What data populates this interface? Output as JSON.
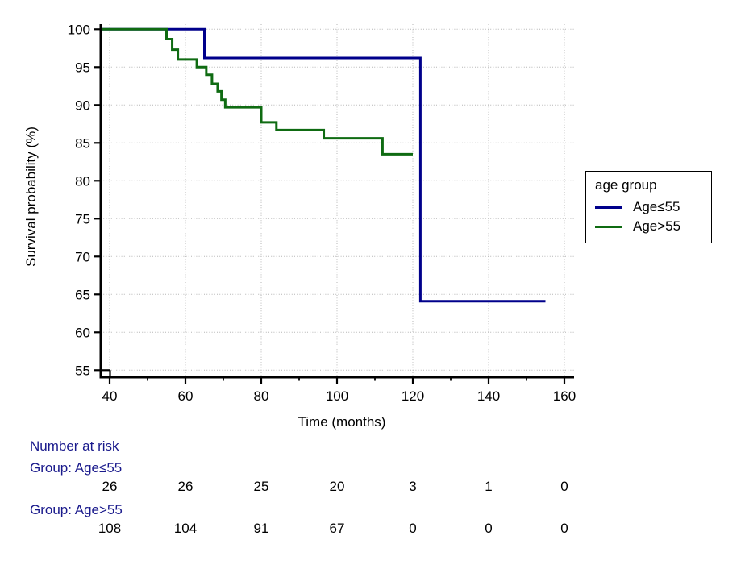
{
  "colors": {
    "curve_age_le_55": "#00008b",
    "curve_age_gt_55": "#0f6b12",
    "risk_text": "#1a1a8c",
    "grid": "#b5b5b5",
    "axis": "#000000"
  },
  "chart_data": {
    "type": "line",
    "subtype": "kaplan-meier-step-curve",
    "title": "",
    "xlabel": "Time (months)",
    "ylabel": "Survival probability (%)",
    "xlim": [
      40,
      160
    ],
    "ylim": [
      55,
      100
    ],
    "x_ticks": [
      40,
      60,
      80,
      100,
      120,
      140,
      160
    ],
    "x_minor_ticks": [
      50,
      70,
      90,
      110,
      130,
      150
    ],
    "y_ticks": [
      55,
      60,
      65,
      70,
      75,
      80,
      85,
      90,
      95,
      100
    ],
    "grid": "dotted",
    "legend": {
      "title": "age group",
      "position": "right-outside",
      "items": [
        {
          "label": "Age≤55",
          "color": "#00008b"
        },
        {
          "label": "Age>55",
          "color": "#0f6b12"
        }
      ]
    },
    "series": [
      {
        "name": "Age≤55",
        "color": "#00008b",
        "end_time": 155,
        "points": [
          [
            40,
            100
          ],
          [
            65,
            96.2
          ],
          [
            122,
            64.1
          ]
        ]
      },
      {
        "name": "Age>55",
        "color": "#0f6b12",
        "end_time": 120,
        "points": [
          [
            40,
            100
          ],
          [
            55,
            98.7
          ],
          [
            56.5,
            97.3
          ],
          [
            58,
            96.0
          ],
          [
            63,
            95.0
          ],
          [
            65.5,
            94.0
          ],
          [
            67,
            92.8
          ],
          [
            68.5,
            91.8
          ],
          [
            69.5,
            90.7
          ],
          [
            70.5,
            89.7
          ],
          [
            80,
            87.7
          ],
          [
            84,
            86.7
          ],
          [
            96.5,
            85.6
          ],
          [
            112,
            83.5
          ]
        ]
      }
    ]
  },
  "risk_table": {
    "title": "Number at risk",
    "times": [
      40,
      60,
      80,
      100,
      120,
      140,
      160
    ],
    "groups": [
      {
        "label": "Group: Age≤55",
        "counts": [
          "26",
          "26",
          "25",
          "20",
          "3",
          "1",
          "0"
        ]
      },
      {
        "label": "Group: Age>55",
        "counts": [
          "108",
          "104",
          "91",
          "67",
          "0",
          "0",
          "0"
        ]
      }
    ]
  }
}
